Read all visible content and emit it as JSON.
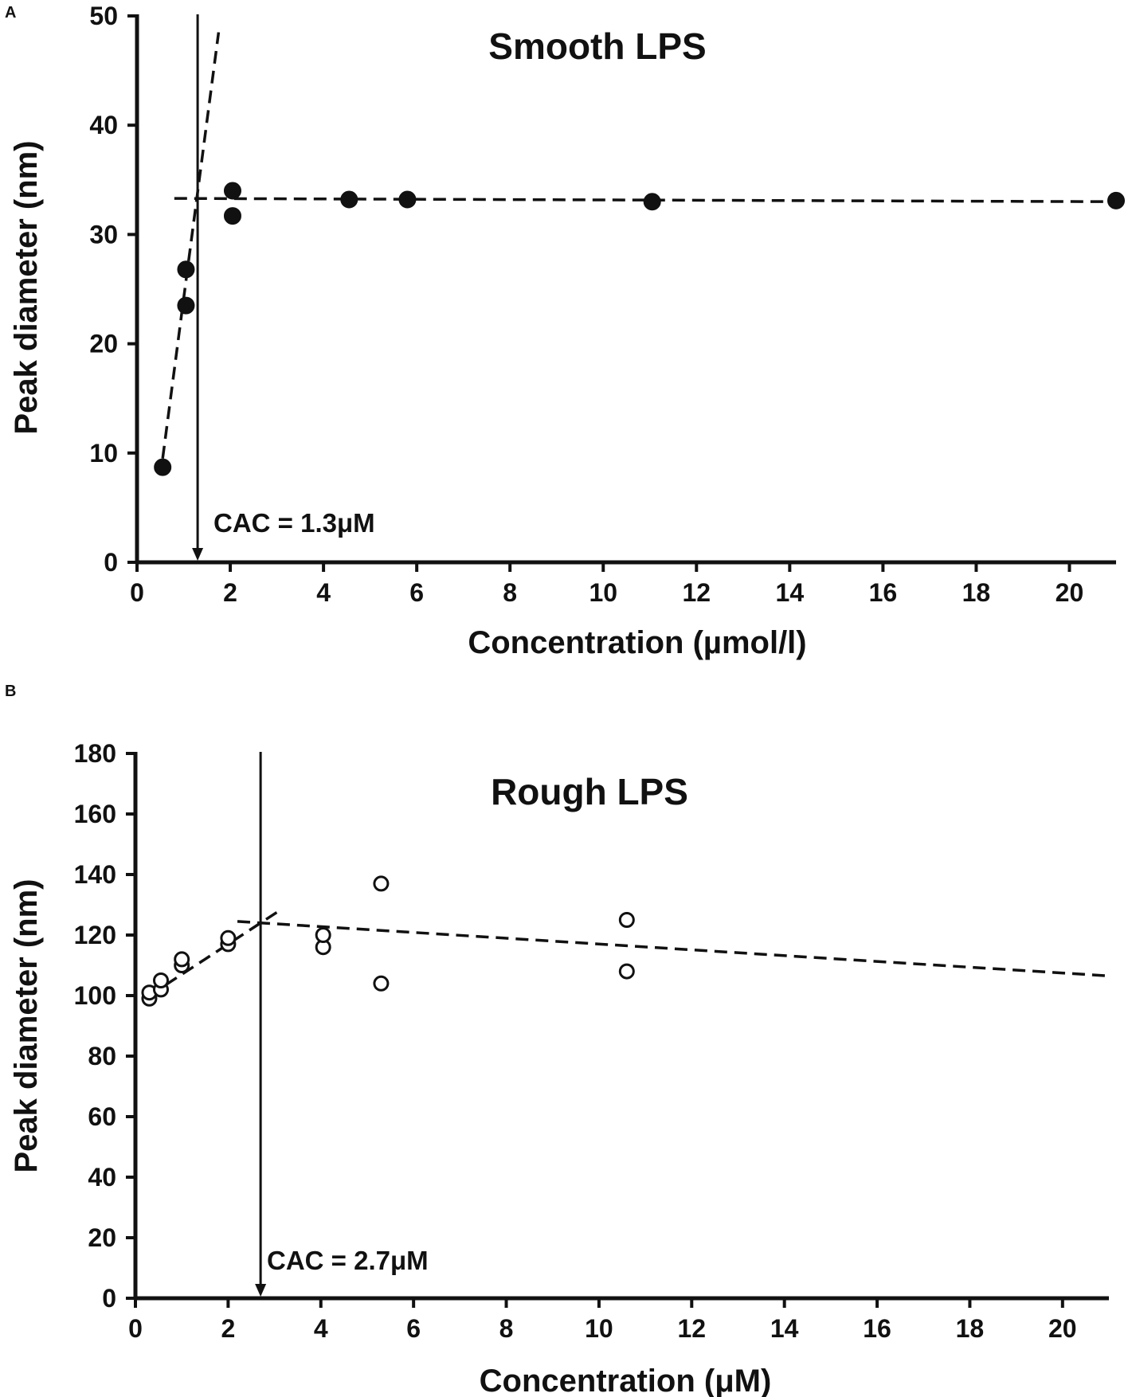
{
  "chart_data": [
    {
      "panel": "A",
      "type": "scatter",
      "title": "Smooth LPS",
      "xlabel": "Concentration (µmol/l)",
      "ylabel": "Peak diameter (nm)",
      "xlim": [
        0,
        21
      ],
      "ylim": [
        0,
        50
      ],
      "xticks": [
        0,
        2,
        4,
        6,
        8,
        10,
        12,
        14,
        16,
        18,
        20
      ],
      "yticks": [
        0,
        10,
        20,
        30,
        40,
        50
      ],
      "marker": "filled",
      "points": [
        {
          "x": 0.55,
          "y": 8.7
        },
        {
          "x": 1.05,
          "y": 23.5
        },
        {
          "x": 1.05,
          "y": 26.8
        },
        {
          "x": 2.05,
          "y": 31.7
        },
        {
          "x": 2.05,
          "y": 34.0
        },
        {
          "x": 4.55,
          "y": 33.2
        },
        {
          "x": 5.8,
          "y": 33.2
        },
        {
          "x": 11.05,
          "y": 33.0
        },
        {
          "x": 21.0,
          "y": 33.1
        }
      ],
      "fit_lines": [
        {
          "x1": 0.55,
          "y1": 9.5,
          "x2": 1.75,
          "y2": 48.5
        },
        {
          "x1": 0.8,
          "y1": 33.3,
          "x2": 21.0,
          "y2": 33.0
        }
      ],
      "cac": {
        "x": 1.3,
        "label": "CAC = 1.3μM"
      }
    },
    {
      "panel": "B",
      "type": "scatter",
      "title": "Rough LPS",
      "xlabel": "Concentration (μM)",
      "ylabel": "Peak diameter (nm)",
      "xlim": [
        0,
        21
      ],
      "ylim": [
        0,
        180
      ],
      "xticks": [
        0,
        2,
        4,
        6,
        8,
        10,
        12,
        14,
        16,
        18,
        20
      ],
      "yticks": [
        0,
        20,
        40,
        60,
        80,
        100,
        120,
        140,
        160,
        180
      ],
      "marker": "open",
      "points": [
        {
          "x": 0.3,
          "y": 99
        },
        {
          "x": 0.3,
          "y": 101
        },
        {
          "x": 0.55,
          "y": 102
        },
        {
          "x": 0.55,
          "y": 105
        },
        {
          "x": 1.0,
          "y": 110
        },
        {
          "x": 1.0,
          "y": 112
        },
        {
          "x": 2.0,
          "y": 117
        },
        {
          "x": 2.0,
          "y": 119
        },
        {
          "x": 4.05,
          "y": 116
        },
        {
          "x": 4.05,
          "y": 120
        },
        {
          "x": 5.3,
          "y": 104
        },
        {
          "x": 5.3,
          "y": 137
        },
        {
          "x": 10.6,
          "y": 108
        },
        {
          "x": 10.6,
          "y": 125
        }
      ],
      "fit_lines": [
        {
          "x1": 0.3,
          "y1": 100,
          "x2": 3.1,
          "y2": 128
        },
        {
          "x1": 2.2,
          "y1": 124.5,
          "x2": 21.0,
          "y2": 106.5
        }
      ],
      "cac": {
        "x": 2.7,
        "label": "CAC = 2.7μM"
      }
    }
  ]
}
